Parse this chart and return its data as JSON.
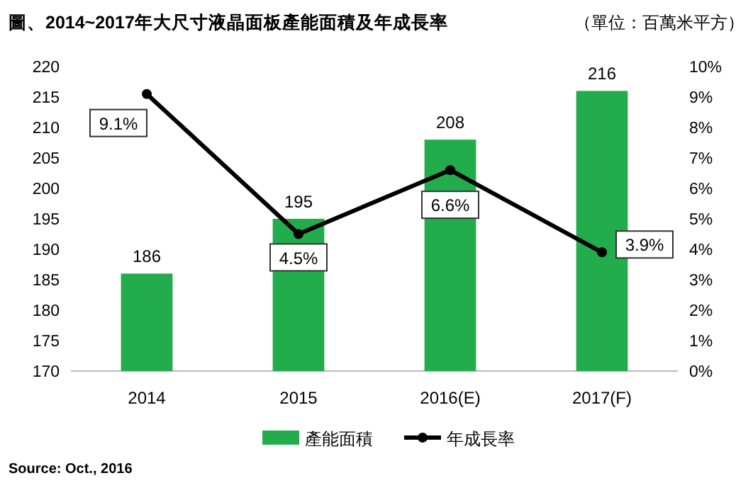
{
  "chart_data": {
    "type": "bar",
    "title": "圖、2014~2017年大尺寸液晶面板產能面積及年成長率",
    "subtitle": "（單位：百萬米平方）",
    "categories": [
      "2014",
      "2015",
      "2016(E)",
      "2017(F)"
    ],
    "series": [
      {
        "name": "產能面積",
        "color": "#22ac4c",
        "values": [
          186,
          195,
          208,
          216
        ],
        "value_labels": [
          "186",
          "195",
          "208",
          "216"
        ]
      },
      {
        "name": "年成長率",
        "type": "line",
        "axis": "y2",
        "color": "#000000",
        "values": [
          9.1,
          4.5,
          6.6,
          3.9
        ],
        "value_labels": [
          "9.1%",
          "4.5%",
          "6.6%",
          "3.9%"
        ]
      }
    ],
    "ylim": [
      170,
      220
    ],
    "yticks": [
      170,
      175,
      180,
      185,
      190,
      195,
      200,
      205,
      210,
      215,
      220
    ],
    "y2lim": [
      0,
      10
    ],
    "y2ticks": [
      {
        "value": 0,
        "label": "0%"
      },
      {
        "value": 1,
        "label": "1%"
      },
      {
        "value": 2,
        "label": "2%"
      },
      {
        "value": 3,
        "label": "3%"
      },
      {
        "value": 4,
        "label": "4%"
      },
      {
        "value": 5,
        "label": "5%"
      },
      {
        "value": 6,
        "label": "6%"
      },
      {
        "value": 7,
        "label": "7%"
      },
      {
        "value": 8,
        "label": "8%"
      },
      {
        "value": 9,
        "label": "9%"
      },
      {
        "value": 10,
        "label": "10%"
      }
    ],
    "marker": "circle",
    "legend": "bottom",
    "grid": false,
    "annotations": [
      "Source: Oct., 2016"
    ]
  }
}
